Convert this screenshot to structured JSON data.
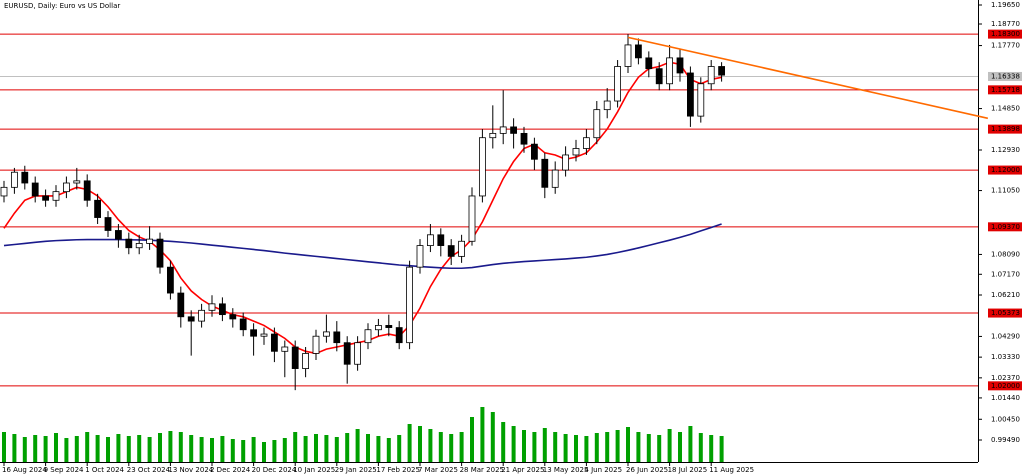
{
  "chart_data": {
    "type": "candlestick",
    "title": "EURUSD, Daily:  Euro vs US Dollar",
    "categories": [
      "16 Aug 2024",
      null,
      null,
      null,
      "9 Sep 2024",
      null,
      null,
      null,
      "1 Oct 2024",
      null,
      null,
      null,
      "23 Oct 2024",
      null,
      null,
      null,
      "13 Nov 2024",
      null,
      null,
      null,
      "2 Dec 2024",
      null,
      null,
      null,
      "20 Dec 2024",
      null,
      null,
      null,
      "10 Jan 2025",
      null,
      null,
      null,
      "29 Jan 2025",
      null,
      null,
      null,
      "17 Feb 2025",
      null,
      null,
      null,
      "7 Mar 2025",
      null,
      null,
      null,
      "28 Mar 2025",
      null,
      null,
      null,
      "21 Apr 2025",
      null,
      null,
      null,
      "13 May 2025",
      null,
      null,
      null,
      "4 Jun 2025",
      null,
      null,
      null,
      "26 Jun 2025",
      null,
      null,
      null,
      "18 Jul 2025",
      null,
      null,
      null,
      "11 Aug 2025",
      null
    ],
    "open": [
      1.108,
      1.112,
      1.119,
      1.114,
      1.108,
      1.106,
      1.11,
      1.114,
      1.115,
      1.106,
      1.098,
      1.092,
      1.088,
      1.084,
      1.086,
      1.088,
      1.075,
      1.063,
      1.052,
      1.05,
      1.055,
      1.058,
      1.053,
      1.051,
      1.046,
      1.043,
      1.044,
      1.036,
      1.038,
      1.028,
      1.035,
      1.043,
      1.045,
      1.04,
      1.03,
      1.04,
      1.046,
      1.048,
      1.047,
      1.04,
      1.075,
      1.085,
      1.09,
      1.085,
      1.08,
      1.087,
      1.108,
      1.135,
      1.137,
      1.14,
      1.137,
      1.132,
      1.125,
      1.112,
      1.12,
      1.127,
      1.13,
      1.135,
      1.148,
      1.152,
      1.168,
      1.178,
      1.172,
      1.167,
      1.16,
      1.172,
      1.165,
      1.145,
      1.16,
      1.168
    ],
    "high": [
      1.115,
      1.121,
      1.122,
      1.117,
      1.111,
      1.113,
      1.117,
      1.121,
      1.118,
      1.109,
      1.101,
      1.095,
      1.091,
      1.09,
      1.094,
      1.091,
      1.078,
      1.066,
      1.055,
      1.058,
      1.062,
      1.061,
      1.056,
      1.054,
      1.049,
      1.047,
      1.047,
      1.041,
      1.041,
      1.038,
      1.046,
      1.053,
      1.05,
      1.043,
      1.043,
      1.049,
      1.051,
      1.053,
      1.05,
      1.078,
      1.088,
      1.095,
      1.093,
      1.088,
      1.09,
      1.112,
      1.139,
      1.15,
      1.157,
      1.144,
      1.14,
      1.135,
      1.128,
      1.124,
      1.131,
      1.134,
      1.139,
      1.152,
      1.158,
      1.171,
      1.183,
      1.181,
      1.175,
      1.17,
      1.178,
      1.176,
      1.168,
      1.163,
      1.171,
      1.17
    ],
    "low": [
      1.105,
      1.109,
      1.111,
      1.105,
      1.103,
      1.103,
      1.107,
      1.111,
      1.103,
      1.095,
      1.089,
      1.084,
      1.081,
      1.081,
      1.083,
      1.072,
      1.06,
      1.047,
      1.034,
      1.047,
      1.052,
      1.05,
      1.047,
      1.043,
      1.034,
      1.039,
      1.031,
      1.024,
      1.018,
      1.024,
      1.032,
      1.04,
      1.036,
      1.021,
      1.027,
      1.037,
      1.043,
      1.043,
      1.037,
      1.037,
      1.072,
      1.082,
      1.08,
      1.076,
      1.077,
      1.085,
      1.105,
      1.13,
      1.132,
      1.13,
      1.128,
      1.12,
      1.107,
      1.109,
      1.117,
      1.124,
      1.127,
      1.132,
      1.144,
      1.149,
      1.165,
      1.169,
      1.163,
      1.157,
      1.157,
      1.161,
      1.14,
      1.142,
      1.157,
      1.161
    ],
    "close": [
      1.112,
      1.119,
      1.114,
      1.108,
      1.106,
      1.11,
      1.114,
      1.115,
      1.106,
      1.098,
      1.092,
      1.088,
      1.084,
      1.086,
      1.088,
      1.075,
      1.063,
      1.052,
      1.05,
      1.055,
      1.058,
      1.053,
      1.051,
      1.046,
      1.043,
      1.044,
      1.036,
      1.038,
      1.028,
      1.035,
      1.043,
      1.045,
      1.04,
      1.03,
      1.04,
      1.046,
      1.048,
      1.047,
      1.04,
      1.075,
      1.085,
      1.09,
      1.085,
      1.08,
      1.087,
      1.108,
      1.135,
      1.137,
      1.14,
      1.137,
      1.132,
      1.125,
      1.112,
      1.12,
      1.127,
      1.13,
      1.135,
      1.148,
      1.152,
      1.168,
      1.178,
      1.172,
      1.167,
      1.16,
      1.172,
      1.165,
      1.145,
      1.16,
      1.168,
      1.164
    ],
    "series": [
      {
        "color": "#ff0000",
        "values": [
          1.093,
          1.1,
          1.106,
          1.108,
          1.108,
          1.108,
          1.11,
          1.112,
          1.111,
          1.108,
          1.103,
          1.097,
          1.092,
          1.089,
          1.087,
          1.083,
          1.078,
          1.07,
          1.064,
          1.06,
          1.057,
          1.055,
          1.053,
          1.052,
          1.05,
          1.048,
          1.045,
          1.042,
          1.038,
          1.036,
          1.035,
          1.037,
          1.038,
          1.039,
          1.04,
          1.041,
          1.043,
          1.044,
          1.043,
          1.048,
          1.056,
          1.066,
          1.074,
          1.08,
          1.083,
          1.088,
          1.096,
          1.106,
          1.116,
          1.124,
          1.13,
          1.132,
          1.128,
          1.127,
          1.125,
          1.126,
          1.128,
          1.133,
          1.139,
          1.147,
          1.156,
          1.163,
          1.167,
          1.168,
          1.17,
          1.169,
          1.162,
          1.16,
          1.162,
          1.163
        ]
      },
      {
        "color": "#1a1a8c",
        "values": [
          1.085,
          1.0855,
          1.086,
          1.0865,
          1.087,
          1.0873,
          1.0875,
          1.0877,
          1.0878,
          1.0878,
          1.0878,
          1.0878,
          1.0877,
          1.0876,
          1.0875,
          1.0872,
          1.087,
          1.0866,
          1.0862,
          1.0857,
          1.0852,
          1.0847,
          1.0842,
          1.0837,
          1.0832,
          1.0827,
          1.0821,
          1.0815,
          1.081,
          1.0805,
          1.08,
          1.0795,
          1.079,
          1.0785,
          1.078,
          1.0775,
          1.077,
          1.0765,
          1.076,
          1.0757,
          1.0753,
          1.075,
          1.0747,
          1.0745,
          1.0745,
          1.0748,
          1.0755,
          1.0762,
          1.0768,
          1.0772,
          1.0776,
          1.0779,
          1.0782,
          1.0785,
          1.0788,
          1.0792,
          1.0796,
          1.0802,
          1.0809,
          1.0818,
          1.0828,
          1.0839,
          1.0851,
          1.0863,
          1.0875,
          1.0888,
          1.0902,
          1.0918,
          1.0934,
          1.095
        ]
      }
    ],
    "volume": [
      30,
      28,
      25,
      27,
      26,
      29,
      24,
      26,
      30,
      27,
      25,
      28,
      26,
      27,
      25,
      29,
      31,
      30,
      27,
      25,
      24,
      26,
      23,
      22,
      25,
      20,
      22,
      24,
      30,
      26,
      28,
      27,
      25,
      29,
      33,
      28,
      26,
      24,
      27,
      38,
      36,
      33,
      30,
      28,
      30,
      45,
      55,
      50,
      40,
      36,
      32,
      30,
      34,
      30,
      28,
      27,
      26,
      29,
      30,
      32,
      35,
      30,
      28,
      27,
      33,
      30,
      36,
      29,
      27,
      26
    ],
    "volume_color": "#00a000",
    "trendline": {
      "color": "#ff6a00",
      "x": [
        60,
        94.6
      ],
      "y": [
        1.1815,
        1.144
      ]
    },
    "levels": [
      {
        "value": 1.183,
        "label": "1.18300"
      },
      {
        "value": 1.15718,
        "label": "1.15718"
      },
      {
        "value": 1.13898,
        "label": "1.13898"
      },
      {
        "value": 1.12,
        "label": "1.12000"
      },
      {
        "value": 1.0937,
        "label": "1.09370"
      },
      {
        "value": 1.05373,
        "label": "1.05373"
      },
      {
        "value": 1.02,
        "label": "1.02000"
      }
    ],
    "level_color": "#e00000",
    "current_price": {
      "value": 1.16338,
      "label": "1.16338"
    },
    "ylim": [
      0.9847,
      1.19882
    ],
    "yticks": [
      {
        "value": 1.1965,
        "label": "1.19650"
      },
      {
        "value": 1.1877,
        "label": "1.18770"
      },
      {
        "value": 1.1777,
        "label": "1.17770"
      },
      {
        "value": 1.1485,
        "label": "1.14850"
      },
      {
        "value": 1.1293,
        "label": "1.12930"
      },
      {
        "value": 1.1105,
        "label": "1.11050"
      },
      {
        "value": 1.0809,
        "label": "1.08090"
      },
      {
        "value": 1.0717,
        "label": "1.07170"
      },
      {
        "value": 1.0621,
        "label": "1.06210"
      },
      {
        "value": 1.0429,
        "label": "1.04290"
      },
      {
        "value": 1.0333,
        "label": "1.03330"
      },
      {
        "value": 1.0237,
        "label": "1.02370"
      },
      {
        "value": 1.0144,
        "label": "1.01440"
      },
      {
        "value": 1.0045,
        "label": "1.00450"
      },
      {
        "value": 0.9949,
        "label": "0.99490"
      }
    ]
  }
}
